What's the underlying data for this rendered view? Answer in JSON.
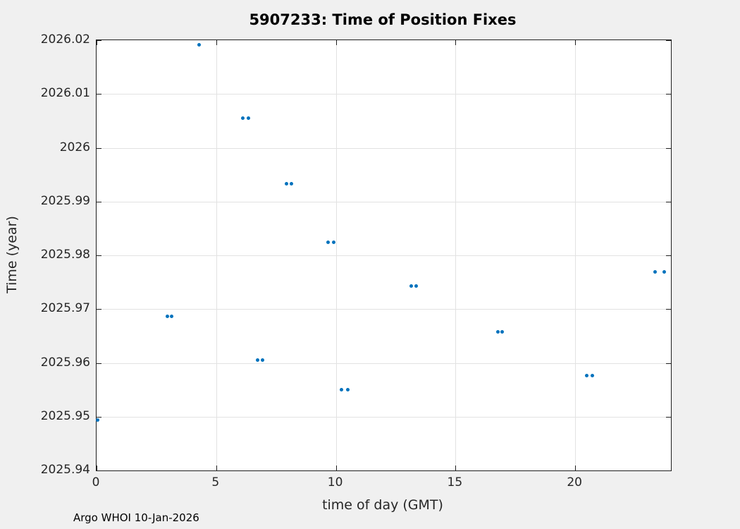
{
  "figure": {
    "title": "5907233: Time of Position Fixes",
    "footer": "Argo WHOI 10-Jan-2026"
  },
  "colors": {
    "figure_background": "#f0f0f0",
    "plot_background": "#ffffff",
    "grid": "#e2e2e2",
    "axis": "#1f1f1f",
    "tick_label": "#262626",
    "marker": "#0072bd"
  },
  "chart_data": {
    "type": "scatter",
    "title": "5907233: Time of Position Fixes",
    "xlabel": "time of day (GMT)",
    "ylabel": "Time (year)",
    "xlim": [
      0,
      24
    ],
    "ylim": [
      2025.94,
      2026.02
    ],
    "grid": true,
    "legend": "none",
    "marker": "dot",
    "marker_color": "#0072bd",
    "xticks": [
      {
        "value": 0,
        "label": "0"
      },
      {
        "value": 5,
        "label": "5"
      },
      {
        "value": 10,
        "label": "10"
      },
      {
        "value": 15,
        "label": "15"
      },
      {
        "value": 20,
        "label": "20"
      }
    ],
    "yticks": [
      {
        "value": 2025.94,
        "label": "2025.94"
      },
      {
        "value": 2025.95,
        "label": "2025.95"
      },
      {
        "value": 2025.96,
        "label": "2025.96"
      },
      {
        "value": 2025.97,
        "label": "2025.97"
      },
      {
        "value": 2025.98,
        "label": "2025.98"
      },
      {
        "value": 2025.99,
        "label": "2025.99"
      },
      {
        "value": 2026.0,
        "label": "2026"
      },
      {
        "value": 2026.01,
        "label": "2026.01"
      },
      {
        "value": 2026.02,
        "label": "2026.02"
      }
    ],
    "points": [
      [
        0.05,
        2025.9494
      ],
      [
        2.97,
        2025.9686
      ],
      [
        3.15,
        2025.9686
      ],
      [
        4.27,
        2026.0192
      ],
      [
        6.1,
        2026.0055
      ],
      [
        6.36,
        2026.0055
      ],
      [
        6.72,
        2025.9605
      ],
      [
        6.93,
        2025.9605
      ],
      [
        7.95,
        2025.9933
      ],
      [
        8.13,
        2025.9933
      ],
      [
        9.67,
        2025.9824
      ],
      [
        9.92,
        2025.9824
      ],
      [
        10.24,
        2025.955
      ],
      [
        10.49,
        2025.955
      ],
      [
        13.16,
        2025.9743
      ],
      [
        13.36,
        2025.9743
      ],
      [
        16.76,
        2025.9658
      ],
      [
        16.96,
        2025.9658
      ],
      [
        20.49,
        2025.9576
      ],
      [
        20.73,
        2025.9576
      ],
      [
        23.35,
        2025.9769
      ],
      [
        23.71,
        2025.9769
      ]
    ]
  }
}
